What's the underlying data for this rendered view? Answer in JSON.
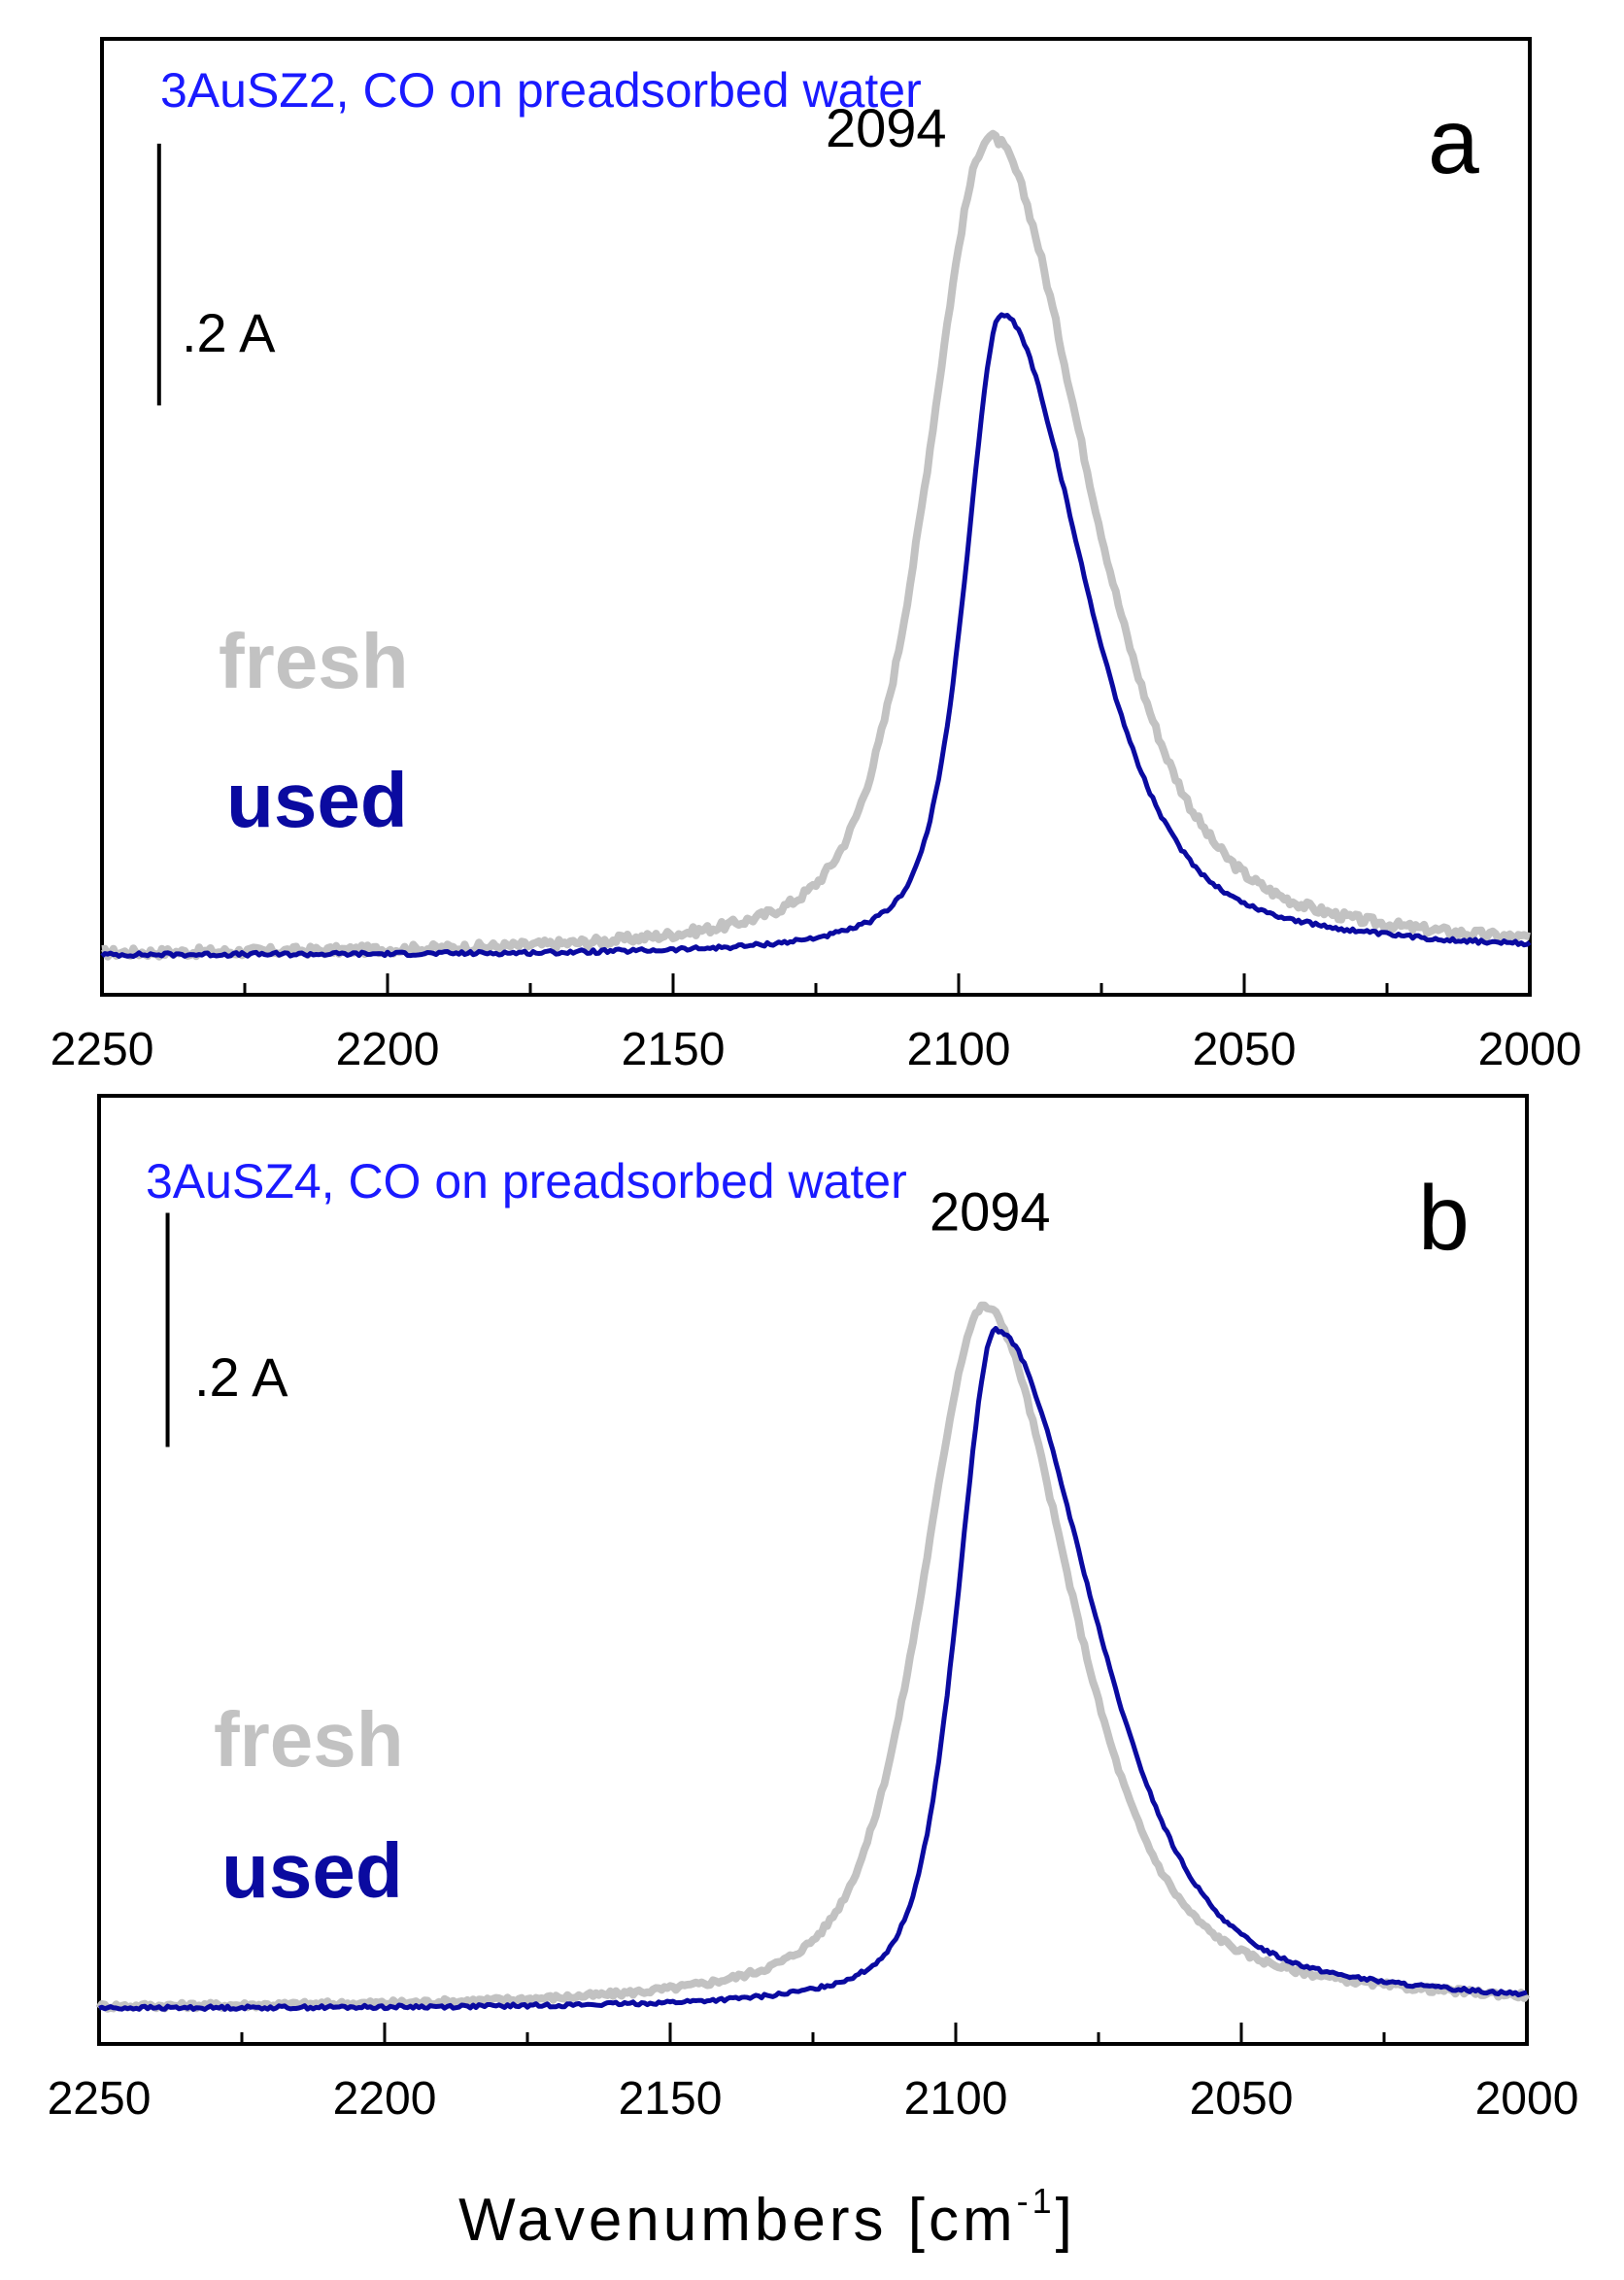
{
  "figure": {
    "xlabel_main": "Wavenumbers [cm",
    "xlabel_sup": "-1",
    "xlabel_close": "]"
  },
  "colors": {
    "fresh": "#c2c2c2",
    "used": "#0a0aa0",
    "title": "#1a1aff",
    "axis": "#000000"
  },
  "chart_data": [
    {
      "type": "line",
      "panel_letter": "a",
      "title": "3AuSZ2, CO on preadsorbed water",
      "xlabel": "Wavenumbers [cm-1]",
      "ylabel": "",
      "xlim": [
        2250,
        2000
      ],
      "ylim": [
        -0.03,
        0.7
      ],
      "x_ticks": [
        2250,
        2200,
        2150,
        2100,
        2050,
        2000
      ],
      "x_tick_labels": [
        "2250",
        "2200",
        "2150",
        "2100",
        "2050",
        "2000"
      ],
      "peak_label": "2094",
      "peak_label_at": [
        2094,
        0.64
      ],
      "scale_bar": {
        "label": ".2 A",
        "from": 0.42,
        "to": 0.62,
        "at_x": 2240
      },
      "legend": [
        "fresh",
        "used"
      ],
      "series": [
        {
          "name": "fresh",
          "peak_position": 2094.5,
          "peak_height": 0.625,
          "hwhm_high": 13,
          "hwhm_low": 20,
          "lorentz_mix": 0.5,
          "noise": 0.0035
        },
        {
          "name": "used",
          "peak_position": 2092.5,
          "peak_height": 0.49,
          "hwhm_high": 7.5,
          "hwhm_low": 17,
          "lorentz_mix": 0.55,
          "noise": 0.0015
        }
      ]
    },
    {
      "type": "line",
      "panel_letter": "b",
      "title": "3AuSZ4, CO on preadsorbed water",
      "xlabel": "Wavenumbers [cm-1]",
      "ylabel": "",
      "xlim": [
        2250,
        2000
      ],
      "ylim": [
        -0.03,
        0.78
      ],
      "x_ticks": [
        2250,
        2200,
        2150,
        2100,
        2050,
        2000
      ],
      "x_tick_labels": [
        "2250",
        "2200",
        "2150",
        "2100",
        "2050",
        "2000"
      ],
      "peak_label": "2094",
      "peak_label_at": [
        2094,
        0.69
      ],
      "scale_bar": {
        "label": ".2 A",
        "from": 0.48,
        "to": 0.68,
        "at_x": 2238
      },
      "legend": [
        "fresh",
        "used"
      ],
      "series": [
        {
          "name": "fresh",
          "peak_position": 2095,
          "peak_height": 0.6,
          "hwhm_high": 13,
          "hwhm_low": 18,
          "lorentz_mix": 0.55,
          "noise": 0.0025
        },
        {
          "name": "used",
          "peak_position": 2093,
          "peak_height": 0.58,
          "hwhm_high": 8,
          "hwhm_low": 20,
          "lorentz_mix": 0.5,
          "noise": 0.0015
        }
      ]
    }
  ]
}
